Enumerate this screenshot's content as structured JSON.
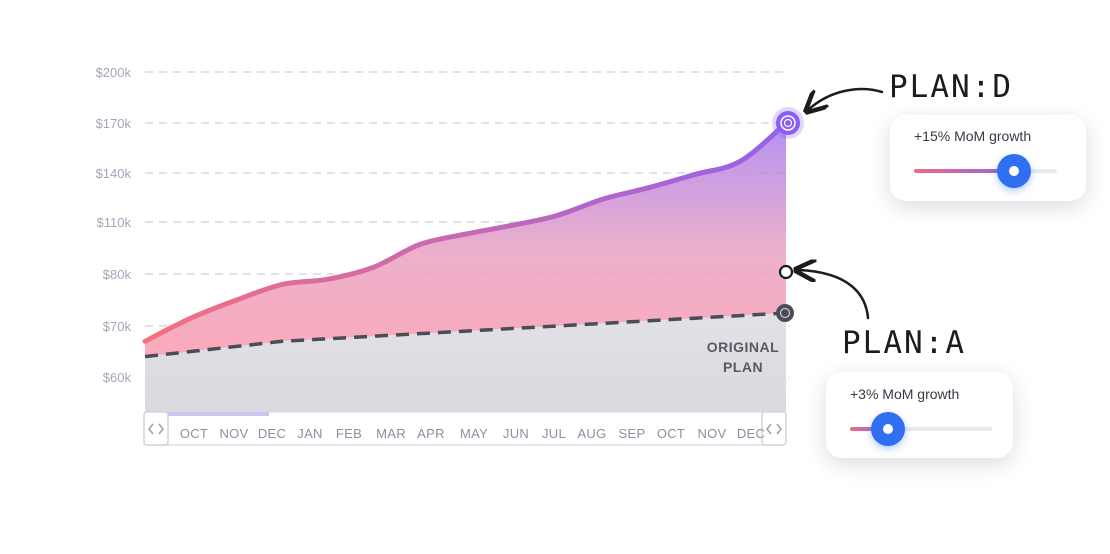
{
  "chart_data": {
    "type": "area",
    "y_tick_labels": [
      "$200k",
      "$170k",
      "$140k",
      "$110k",
      "$80k",
      "$70k",
      "$60k"
    ],
    "x_tick_labels": [
      "OCT",
      "NOV",
      "DEC",
      "JAN",
      "FEB",
      "MAR",
      "APR",
      "MAY",
      "JUN",
      "JUL",
      "AUG",
      "SEP",
      "OCT",
      "NOV",
      "DEC"
    ],
    "series": [
      {
        "name": "PLAN:D",
        "style": "solid-gradient-area",
        "values": [
          67,
          71.5,
          75,
          78,
          79,
          84,
          97,
          103,
          108,
          114,
          124,
          131,
          139,
          147,
          170
        ]
      },
      {
        "name": "PLAN:A",
        "values": [
          null,
          null,
          null,
          null,
          null,
          null,
          null,
          null,
          null,
          null,
          null,
          null,
          null,
          null,
          80
        ]
      },
      {
        "name": "ORIGINAL PLAN",
        "style": "dashed",
        "values": [
          64,
          65,
          66,
          67,
          67.5,
          68,
          68.5,
          69,
          69.5,
          70,
          70.5,
          71,
          71.5,
          72,
          72.5
        ]
      }
    ],
    "annotations": [
      "PLAN:D",
      "PLAN:A",
      "ORIGINAL PLAN"
    ],
    "grid": true,
    "legend": "none",
    "colors": {
      "gradient_start": "#f4717f",
      "gradient_end": "#9661ea",
      "dashed_line": "#4a4d57",
      "grid": "#d8dae1",
      "endpoint_top": "#8b5cf6"
    }
  },
  "range_selector": {
    "left_handle_icon": "chevron-left-right-icon",
    "right_handle_icon": "chevron-left-right-icon",
    "selected_months": [
      "OCT",
      "NOV",
      "DEC"
    ]
  },
  "scenario_cards": {
    "plan_d": {
      "label": "+15% MoM growth",
      "slider_value": 0.7,
      "fill_color": "#f26a83"
    },
    "plan_a": {
      "label": "+3% MoM growth",
      "slider_value": 0.27,
      "fill_color": "#ea6d83"
    }
  }
}
